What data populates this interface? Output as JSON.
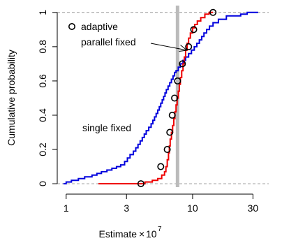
{
  "chart_data": {
    "type": "line",
    "title": "",
    "xlabel": "Estimate",
    "xlabel_factor_base": "10",
    "xlabel_factor_exp": "7",
    "ylabel": "Cumulative probability",
    "x_scale": "log",
    "xlim": [
      0.85,
      40
    ],
    "ylim": [
      -0.02,
      1.04
    ],
    "x_ticks": [
      1,
      3,
      10,
      30
    ],
    "x_tick_labels": [
      "1",
      "3",
      "10",
      "30"
    ],
    "y_ticks": [
      0,
      0.2,
      0.4,
      0.6,
      0.8,
      1
    ],
    "y_tick_labels": [
      "0",
      "0.2",
      "0.4",
      "0.6",
      "0.8",
      "1"
    ],
    "reference_lines": {
      "horizontal": [
        0,
        1
      ],
      "style": "dashed",
      "color": "#999999"
    },
    "vertical_marker": {
      "x": 7.6,
      "color": "#bbbbbb"
    },
    "annotations": [
      {
        "text": "adaptive"
      },
      {
        "text": "parallel fixed",
        "arrow_to": {
          "x": 7.6,
          "y": 0.76
        }
      },
      {
        "text": "single fixed"
      }
    ],
    "series": [
      {
        "name": "single fixed",
        "kind": "step",
        "color": "#0000dd",
        "points": [
          [
            0.95,
            0.0
          ],
          [
            1.0,
            0.01
          ],
          [
            1.1,
            0.02
          ],
          [
            1.25,
            0.03
          ],
          [
            1.4,
            0.04
          ],
          [
            1.6,
            0.05
          ],
          [
            1.75,
            0.06
          ],
          [
            1.9,
            0.07
          ],
          [
            2.1,
            0.08
          ],
          [
            2.3,
            0.09
          ],
          [
            2.5,
            0.1
          ],
          [
            2.7,
            0.11
          ],
          [
            2.9,
            0.13
          ],
          [
            3.05,
            0.15
          ],
          [
            3.2,
            0.17
          ],
          [
            3.4,
            0.19
          ],
          [
            3.55,
            0.21
          ],
          [
            3.7,
            0.23
          ],
          [
            3.85,
            0.25
          ],
          [
            4.0,
            0.27
          ],
          [
            4.15,
            0.29
          ],
          [
            4.3,
            0.31
          ],
          [
            4.5,
            0.33
          ],
          [
            4.7,
            0.35
          ],
          [
            4.85,
            0.37
          ],
          [
            5.0,
            0.39
          ],
          [
            5.15,
            0.41
          ],
          [
            5.3,
            0.43
          ],
          [
            5.45,
            0.45
          ],
          [
            5.6,
            0.47
          ],
          [
            5.75,
            0.49
          ],
          [
            5.9,
            0.51
          ],
          [
            6.05,
            0.53
          ],
          [
            6.2,
            0.55
          ],
          [
            6.4,
            0.57
          ],
          [
            6.6,
            0.59
          ],
          [
            6.8,
            0.61
          ],
          [
            7.0,
            0.63
          ],
          [
            7.2,
            0.65
          ],
          [
            7.4,
            0.66
          ],
          [
            7.7,
            0.68
          ],
          [
            8.0,
            0.7
          ],
          [
            8.4,
            0.72
          ],
          [
            8.8,
            0.74
          ],
          [
            9.3,
            0.76
          ],
          [
            9.8,
            0.78
          ],
          [
            10.3,
            0.8
          ],
          [
            10.8,
            0.82
          ],
          [
            11.3,
            0.84
          ],
          [
            11.8,
            0.86
          ],
          [
            12.3,
            0.88
          ],
          [
            12.9,
            0.9
          ],
          [
            13.6,
            0.92
          ],
          [
            14.5,
            0.94
          ],
          [
            16.0,
            0.96
          ],
          [
            18.5,
            0.98
          ],
          [
            24.0,
            0.99
          ],
          [
            27.0,
            1.0
          ],
          [
            33.0,
            1.0
          ]
        ]
      },
      {
        "name": "parallel fixed",
        "kind": "step",
        "color": "#ee0000",
        "points": [
          [
            1.8,
            0.0
          ],
          [
            3.5,
            0.0
          ],
          [
            4.2,
            0.01
          ],
          [
            4.8,
            0.02
          ],
          [
            5.3,
            0.03
          ],
          [
            5.7,
            0.05
          ],
          [
            6.0,
            0.07
          ],
          [
            6.15,
            0.1
          ],
          [
            6.3,
            0.14
          ],
          [
            6.45,
            0.18
          ],
          [
            6.55,
            0.22
          ],
          [
            6.65,
            0.26
          ],
          [
            6.8,
            0.3
          ],
          [
            6.95,
            0.34
          ],
          [
            7.1,
            0.38
          ],
          [
            7.25,
            0.42
          ],
          [
            7.4,
            0.46
          ],
          [
            7.55,
            0.5
          ],
          [
            7.7,
            0.54
          ],
          [
            7.85,
            0.58
          ],
          [
            8.0,
            0.62
          ],
          [
            8.2,
            0.66
          ],
          [
            8.4,
            0.7
          ],
          [
            8.6,
            0.74
          ],
          [
            8.8,
            0.78
          ],
          [
            9.05,
            0.82
          ],
          [
            9.3,
            0.85
          ],
          [
            9.6,
            0.88
          ],
          [
            10.0,
            0.91
          ],
          [
            10.4,
            0.93
          ],
          [
            10.9,
            0.95
          ],
          [
            11.6,
            0.97
          ],
          [
            12.5,
            0.99
          ],
          [
            13.5,
            1.0
          ],
          [
            14.5,
            1.0
          ]
        ]
      },
      {
        "name": "adaptive",
        "kind": "points",
        "color": "#000000",
        "points": [
          [
            3.9,
            0.0
          ],
          [
            5.6,
            0.1
          ],
          [
            6.3,
            0.2
          ],
          [
            6.6,
            0.3
          ],
          [
            6.9,
            0.4
          ],
          [
            7.2,
            0.5
          ],
          [
            7.6,
            0.6
          ],
          [
            8.3,
            0.7
          ],
          [
            9.3,
            0.8
          ],
          [
            10.2,
            0.9
          ],
          [
            14.5,
            1.0
          ]
        ]
      }
    ]
  }
}
